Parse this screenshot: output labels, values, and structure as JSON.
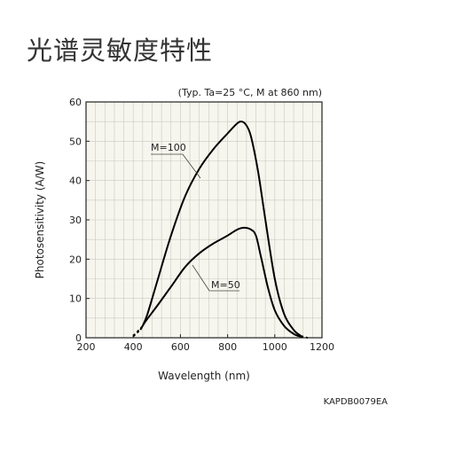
{
  "page": {
    "title": "光谱灵敏度特性"
  },
  "chart_data": {
    "type": "line",
    "title": "",
    "note": "(Typ. Ta=25 °C, M at 860 nm)",
    "xlabel": "Wavelength (nm)",
    "ylabel": "Photosensitivity (A/W)",
    "xlim": [
      200,
      1200
    ],
    "ylim": [
      0,
      60
    ],
    "xticks": [
      200,
      400,
      600,
      800,
      1000,
      1200
    ],
    "yticks": [
      0,
      10,
      20,
      30,
      40,
      50,
      60
    ],
    "xtick_labels": [
      "200",
      "400",
      "600",
      "800",
      "1000",
      "1200"
    ],
    "ytick_labels": [
      "0",
      "10",
      "20",
      "30",
      "40",
      "50",
      "60"
    ],
    "grid": true,
    "series": [
      {
        "name": "M=100",
        "x": [
          440,
          460,
          500,
          560,
          620,
          680,
          740,
          800,
          840,
          860,
          880,
          900,
          930,
          960,
          1000,
          1040,
          1080,
          1110
        ],
        "y": [
          3,
          6,
          14,
          26,
          36,
          43,
          48,
          52,
          54.5,
          55,
          54,
          51,
          42,
          30,
          15,
          6,
          2,
          0.5
        ],
        "dashed_start": {
          "x": [
            400,
            440
          ],
          "y": [
            0.5,
            3
          ]
        },
        "dashed_end": {
          "x": [
            1110,
            1140
          ],
          "y": [
            0.5,
            0
          ]
        }
      },
      {
        "name": "M=50",
        "x": [
          430,
          450,
          500,
          560,
          620,
          680,
          740,
          800,
          840,
          870,
          900,
          920,
          940,
          970,
          1000,
          1040,
          1080,
          1110
        ],
        "y": [
          2,
          4,
          8,
          13,
          18,
          21.5,
          24,
          26,
          27.5,
          28,
          27.5,
          26,
          21,
          13,
          7,
          3,
          1,
          0.3
        ],
        "dashed_start": {
          "x": [
            400,
            430
          ],
          "y": [
            0.3,
            2
          ]
        },
        "dashed_end": {
          "x": [
            1110,
            1140
          ],
          "y": [
            0.3,
            0
          ]
        }
      }
    ],
    "series_labels": [
      "M=100",
      "M=50"
    ]
  },
  "figure_code": "KAPDB0079EA"
}
